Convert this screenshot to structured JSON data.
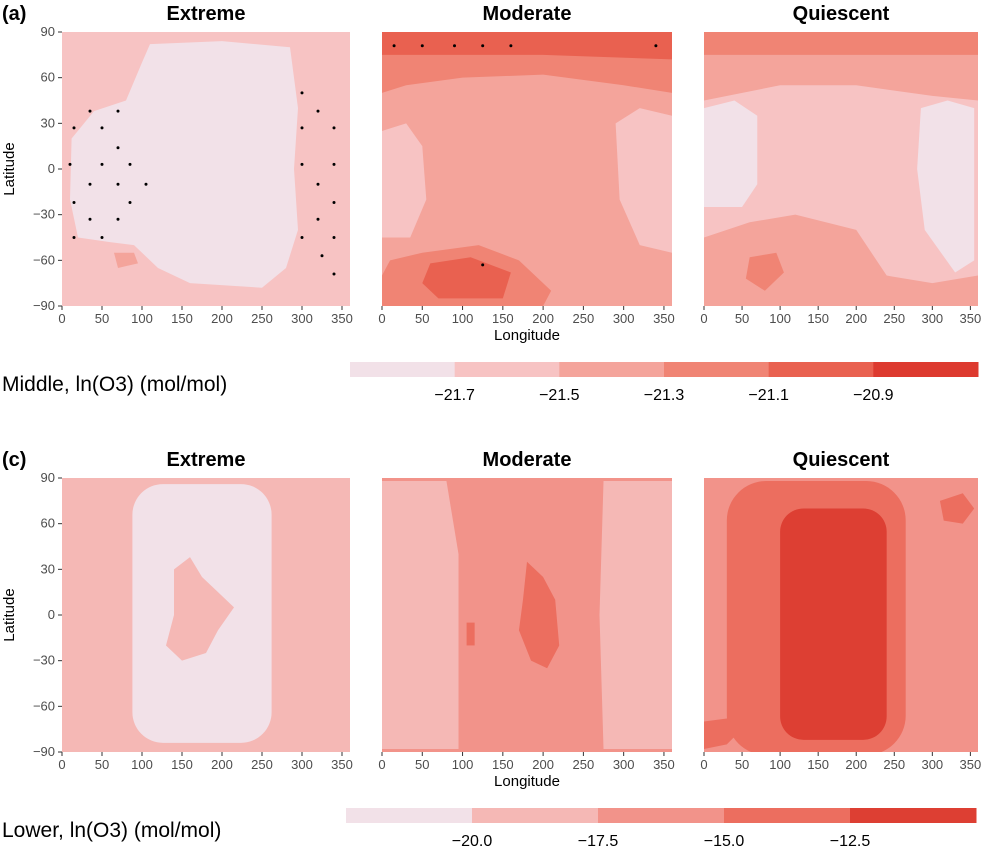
{
  "chart_data": [
    {
      "type": "heatmap",
      "panel_label": "(a)",
      "ylabel": "Latitude",
      "xlabel": "Longitude",
      "x_ticks": [
        0,
        50,
        100,
        150,
        200,
        250,
        300,
        350
      ],
      "y_ticks": [
        90,
        60,
        30,
        0,
        -30,
        -60,
        -90
      ],
      "xlim": [
        0,
        360
      ],
      "ylim": [
        -90,
        90
      ],
      "colorbar": {
        "label": "Middle, ln(O3) (mol/mol)",
        "ticks": [
          "−21.7",
          "−21.5",
          "−21.3",
          "−21.1",
          "−20.9"
        ],
        "colors": [
          "#f2e1e8",
          "#f7c3c3",
          "#f4a49b",
          "#f08474",
          "#e96150",
          "#dd3a2f"
        ]
      },
      "panels": [
        {
          "title": "Extreme",
          "background": 1,
          "regions": [
            {
              "level": 0,
              "poly": [
                [
                  110,
                  82
                ],
                [
                  200,
                  84
                ],
                [
                  285,
                  80
                ],
                [
                  295,
                  40
                ],
                [
                  290,
                  0
                ],
                [
                  295,
                  -40
                ],
                [
                  280,
                  -65
                ],
                [
                  250,
                  -78
                ],
                [
                  160,
                  -75
                ],
                [
                  120,
                  -65
                ],
                [
                  90,
                  -50
                ],
                [
                  60,
                  -48
                ],
                [
                  20,
                  -45
                ],
                [
                  10,
                  -20
                ],
                [
                  12,
                  20
                ],
                [
                  40,
                  38
                ],
                [
                  80,
                  45
                ],
                [
                  100,
                  70
                ]
              ]
            },
            {
              "level": 2,
              "poly": [
                [
                  65,
                  -55
                ],
                [
                  90,
                  -55
                ],
                [
                  95,
                  -62
                ],
                [
                  70,
                  -65
                ]
              ]
            }
          ],
          "dots": [
            [
              35,
              38
            ],
            [
              70,
              38
            ],
            [
              15,
              27
            ],
            [
              50,
              27
            ],
            [
              70,
              14
            ],
            [
              10,
              3
            ],
            [
              50,
              3
            ],
            [
              85,
              3
            ],
            [
              35,
              -10
            ],
            [
              70,
              -10
            ],
            [
              105,
              -10
            ],
            [
              15,
              -22
            ],
            [
              85,
              -22
            ],
            [
              35,
              -33
            ],
            [
              70,
              -33
            ],
            [
              15,
              -45
            ],
            [
              50,
              -45
            ],
            [
              300,
              50
            ],
            [
              320,
              38
            ],
            [
              300,
              27
            ],
            [
              340,
              27
            ],
            [
              300,
              3
            ],
            [
              340,
              3
            ],
            [
              320,
              -10
            ],
            [
              340,
              -22
            ],
            [
              320,
              -33
            ],
            [
              300,
              -45
            ],
            [
              340,
              -45
            ],
            [
              325,
              -57
            ],
            [
              340,
              -69
            ]
          ]
        },
        {
          "title": "Moderate",
          "background": 2,
          "regions": [
            {
              "level": 3,
              "poly": [
                [
                  0,
                  90
                ],
                [
                  360,
                  90
                ],
                [
                  360,
                  50
                ],
                [
                  300,
                  55
                ],
                [
                  200,
                  62
                ],
                [
                  100,
                  60
                ],
                [
                  30,
                  55
                ],
                [
                  0,
                  50
                ]
              ]
            },
            {
              "level": 4,
              "poly": [
                [
                  0,
                  90
                ],
                [
                  360,
                  90
                ],
                [
                  360,
                  72
                ],
                [
                  200,
                  75
                ],
                [
                  0,
                  75
                ]
              ]
            },
            {
              "level": 1,
              "poly": [
                [
                  0,
                  25
                ],
                [
                  30,
                  30
                ],
                [
                  50,
                  15
                ],
                [
                  55,
                  -20
                ],
                [
                  35,
                  -45
                ],
                [
                  0,
                  -45
                ]
              ]
            },
            {
              "level": 1,
              "poly": [
                [
                  290,
                  30
                ],
                [
                  320,
                  40
                ],
                [
                  360,
                  35
                ],
                [
                  360,
                  -55
                ],
                [
                  320,
                  -50
                ],
                [
                  295,
                  -20
                ]
              ]
            },
            {
              "level": 3,
              "poly": [
                [
                  10,
                  -60
                ],
                [
                  50,
                  -55
                ],
                [
                  120,
                  -50
                ],
                [
                  170,
                  -60
                ],
                [
                  210,
                  -80
                ],
                [
                  200,
                  -90
                ],
                [
                  0,
                  -90
                ],
                [
                  0,
                  -70
                ]
              ]
            },
            {
              "level": 4,
              "poly": [
                [
                  60,
                  -62
                ],
                [
                  110,
                  -58
                ],
                [
                  160,
                  -68
                ],
                [
                  150,
                  -85
                ],
                [
                  70,
                  -85
                ],
                [
                  50,
                  -75
                ]
              ]
            }
          ],
          "dots": [
            [
              15,
              81
            ],
            [
              50,
              81
            ],
            [
              90,
              81
            ],
            [
              125,
              81
            ],
            [
              160,
              81
            ],
            [
              340,
              81
            ],
            [
              125,
              -63
            ]
          ]
        },
        {
          "title": "Quiescent",
          "background": 1,
          "regions": [
            {
              "level": 2,
              "poly": [
                [
                  0,
                  90
                ],
                [
                  360,
                  90
                ],
                [
                  360,
                  45
                ],
                [
                  300,
                  48
                ],
                [
                  200,
                  55
                ],
                [
                  100,
                  55
                ],
                [
                  0,
                  45
                ]
              ]
            },
            {
              "level": 3,
              "poly": [
                [
                  0,
                  90
                ],
                [
                  360,
                  90
                ],
                [
                  360,
                  75
                ],
                [
                  0,
                  75
                ]
              ]
            },
            {
              "level": 0,
              "poly": [
                [
                  0,
                  40
                ],
                [
                  40,
                  45
                ],
                [
                  70,
                  35
                ],
                [
                  70,
                  -10
                ],
                [
                  50,
                  -25
                ],
                [
                  0,
                  -25
                ]
              ]
            },
            {
              "level": 0,
              "poly": [
                [
                  285,
                  40
                ],
                [
                  320,
                  45
                ],
                [
                  355,
                  40
                ],
                [
                  355,
                  -60
                ],
                [
                  330,
                  -68
                ],
                [
                  290,
                  -40
                ],
                [
                  280,
                  0
                ]
              ]
            },
            {
              "level": 2,
              "poly": [
                [
                  0,
                  -45
                ],
                [
                  60,
                  -35
                ],
                [
                  120,
                  -30
                ],
                [
                  200,
                  -40
                ],
                [
                  240,
                  -70
                ],
                [
                  300,
                  -75
                ],
                [
                  360,
                  -70
                ],
                [
                  360,
                  -90
                ],
                [
                  0,
                  -90
                ]
              ]
            },
            {
              "level": 3,
              "poly": [
                [
                  60,
                  -58
                ],
                [
                  95,
                  -55
                ],
                [
                  105,
                  -68
                ],
                [
                  80,
                  -80
                ],
                [
                  55,
                  -72
                ]
              ]
            }
          ],
          "dots": []
        }
      ]
    },
    {
      "type": "heatmap",
      "panel_label": "(c)",
      "ylabel": "Latitude",
      "xlabel": "Longitude",
      "x_ticks": [
        0,
        50,
        100,
        150,
        200,
        250,
        300,
        350
      ],
      "y_ticks": [
        90,
        60,
        30,
        0,
        -30,
        -60,
        -90
      ],
      "xlim": [
        0,
        360
      ],
      "ylim": [
        -90,
        90
      ],
      "colorbar": {
        "label": "Lower, ln(O3) (mol/mol)",
        "ticks": [
          "−20.0",
          "−17.5",
          "−15.0",
          "−12.5"
        ],
        "colors": [
          "#f2e1e8",
          "#f5b8b5",
          "#f2938a",
          "#ec6e5f",
          "#dd3f33"
        ]
      },
      "panels": [
        {
          "title": "Extreme",
          "background": 1,
          "regions": [
            {
              "level": 0,
              "rect": [
                88,
                262,
                86,
                -84
              ]
            },
            {
              "level": 1,
              "poly": [
                [
                  140,
                  30
                ],
                [
                  160,
                  38
                ],
                [
                  175,
                  25
                ],
                [
                  195,
                  15
                ],
                [
                  215,
                  5
                ],
                [
                  195,
                  -10
                ],
                [
                  180,
                  -25
                ],
                [
                  150,
                  -30
                ],
                [
                  130,
                  -20
                ],
                [
                  140,
                  0
                ]
              ]
            }
          ],
          "dots": []
        },
        {
          "title": "Moderate",
          "background": 2,
          "regions": [
            {
              "level": 1,
              "poly": [
                [
                  0,
                  88
                ],
                [
                  80,
                  88
                ],
                [
                  95,
                  40
                ],
                [
                  95,
                  -88
                ],
                [
                  0,
                  -88
                ]
              ]
            },
            {
              "level": 1,
              "poly": [
                [
                  275,
                  88
                ],
                [
                  360,
                  88
                ],
                [
                  360,
                  -88
                ],
                [
                  275,
                  -88
                ],
                [
                  270,
                  0
                ]
              ]
            },
            {
              "level": 3,
              "poly": [
                [
                  180,
                  35
                ],
                [
                  200,
                  25
                ],
                [
                  215,
                  10
                ],
                [
                  220,
                  -20
                ],
                [
                  205,
                  -35
                ],
                [
                  185,
                  -30
                ],
                [
                  170,
                  -10
                ],
                [
                  175,
                  10
                ]
              ]
            },
            {
              "level": 3,
              "poly": [
                [
                  105,
                  -5
                ],
                [
                  115,
                  -5
                ],
                [
                  115,
                  -20
                ],
                [
                  105,
                  -20
                ]
              ]
            }
          ],
          "dots": []
        },
        {
          "title": "Quiescent",
          "background": 2,
          "regions": [
            {
              "level": 3,
              "rect": [
                30,
                265,
                88,
                -92
              ]
            },
            {
              "level": 4,
              "rect": [
                100,
                240,
                70,
                -82
              ]
            },
            {
              "level": 3,
              "poly": [
                [
                  310,
                  75
                ],
                [
                  340,
                  80
                ],
                [
                  355,
                  70
                ],
                [
                  340,
                  60
                ],
                [
                  315,
                  62
                ]
              ]
            },
            {
              "level": 3,
              "poly": [
                [
                  0,
                  -70
                ],
                [
                  30,
                  -68
                ],
                [
                  50,
                  -75
                ],
                [
                  30,
                  -85
                ],
                [
                  0,
                  -88
                ]
              ]
            }
          ],
          "dots": []
        }
      ]
    }
  ]
}
